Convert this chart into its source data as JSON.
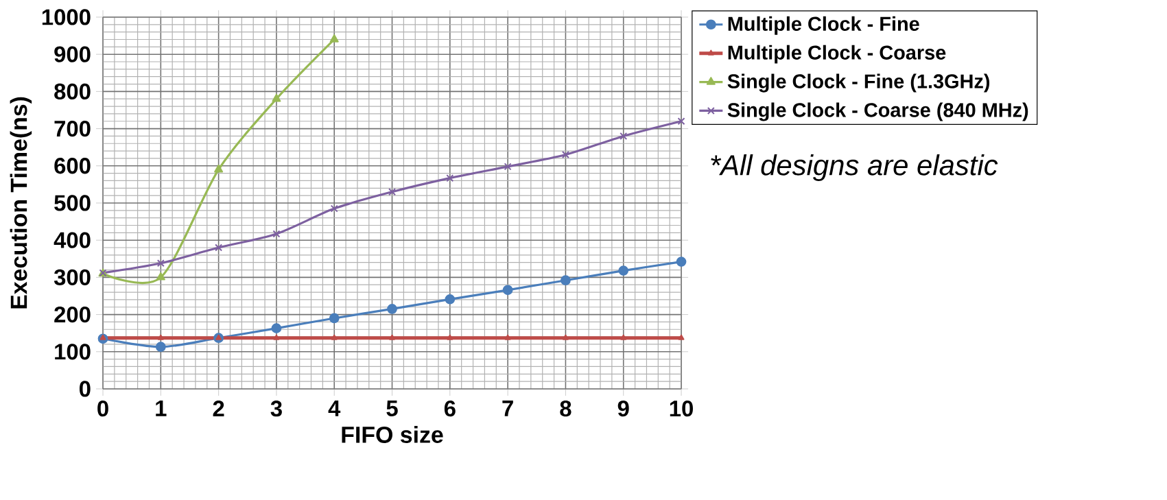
{
  "chart_data": {
    "type": "line",
    "xlabel": "FIFO size",
    "ylabel": "Execution Time(ns)",
    "categories": [
      "0",
      "1",
      "2",
      "3",
      "4",
      "5",
      "6",
      "7",
      "8",
      "9",
      "10"
    ],
    "series": [
      {
        "name": "Multiple Clock - Fine",
        "color": "#4a7ebb",
        "marker": "circle",
        "values": [
          135,
          113,
          137,
          163,
          190,
          215,
          241,
          266,
          292,
          318,
          342
        ]
      },
      {
        "name": "Multiple Clock - Coarse",
        "color": "#be4b48",
        "marker": "triangle",
        "values": [
          137,
          137,
          137,
          137,
          137,
          137,
          137,
          137,
          137,
          137,
          137
        ]
      },
      {
        "name": "Single Clock - Fine (1.3GHz)",
        "color": "#98b954",
        "marker": "triangle",
        "values": [
          310,
          300,
          590,
          780,
          940,
          null,
          null,
          null,
          null,
          null,
          null
        ]
      },
      {
        "name": "Single Clock - Coarse (840 MHz)",
        "color": "#7d60a0",
        "marker": "cross",
        "values": [
          312,
          338,
          380,
          417,
          485,
          530,
          567,
          598,
          630,
          680,
          720
        ]
      }
    ],
    "ylim": [
      0,
      1000
    ],
    "yticks": [
      0,
      100,
      200,
      300,
      400,
      500,
      600,
      700,
      800,
      900,
      1000
    ],
    "grid": true,
    "legend": "top right",
    "line_style": "solid",
    "annotations": [
      "*All designs are elastic"
    ]
  }
}
